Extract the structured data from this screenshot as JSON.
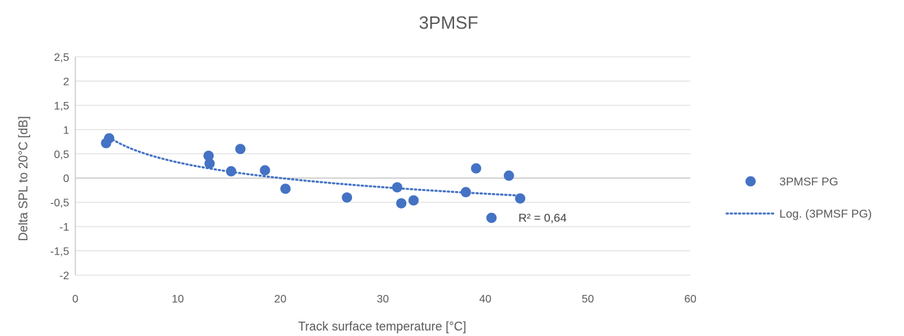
{
  "chart_data": {
    "type": "scatter",
    "title": "3PMSF",
    "xlabel": "Track surface temperature [°C]",
    "ylabel": "Delta SPL to 20°C [dB]",
    "xlim": [
      0,
      60
    ],
    "ylim": [
      -2,
      2.5
    ],
    "x_ticks": [
      0,
      10,
      20,
      30,
      40,
      50,
      60
    ],
    "y_ticks": [
      -2,
      -1.5,
      -1,
      -0.5,
      0,
      0.5,
      1,
      1.5,
      2,
      2.5
    ],
    "x_tick_labels": [
      "0",
      "10",
      "20",
      "30",
      "40",
      "50",
      "60"
    ],
    "y_tick_labels": [
      "-2",
      "-1,5",
      "-1",
      "-0,5",
      "0",
      "0,5",
      "1",
      "1,5",
      "2",
      "2,5"
    ],
    "grid": "horizontal",
    "legend_position": "right",
    "series": [
      {
        "name": "3PMSF PG",
        "color": "#4472C4",
        "points": [
          {
            "x": 3.0,
            "y": 0.72
          },
          {
            "x": 3.3,
            "y": 0.82
          },
          {
            "x": 13.0,
            "y": 0.46
          },
          {
            "x": 13.1,
            "y": 0.3
          },
          {
            "x": 15.2,
            "y": 0.14
          },
          {
            "x": 16.1,
            "y": 0.6
          },
          {
            "x": 18.5,
            "y": 0.16
          },
          {
            "x": 20.5,
            "y": -0.22
          },
          {
            "x": 26.5,
            "y": -0.4
          },
          {
            "x": 31.4,
            "y": -0.19
          },
          {
            "x": 31.8,
            "y": -0.52
          },
          {
            "x": 33.0,
            "y": -0.46
          },
          {
            "x": 38.1,
            "y": -0.29
          },
          {
            "x": 39.1,
            "y": 0.2
          },
          {
            "x": 40.6,
            "y": -0.82
          },
          {
            "x": 42.3,
            "y": 0.05
          },
          {
            "x": 43.4,
            "y": -0.42
          }
        ]
      }
    ],
    "trendline": {
      "name": "Log. (3PMSF PG)",
      "type": "logarithmic",
      "color": "#4472C4",
      "x_range": [
        3.3,
        43.4
      ],
      "y_at_start": 0.84,
      "y_at_end": -0.36,
      "r_squared_label": "R² = 0,64"
    }
  }
}
